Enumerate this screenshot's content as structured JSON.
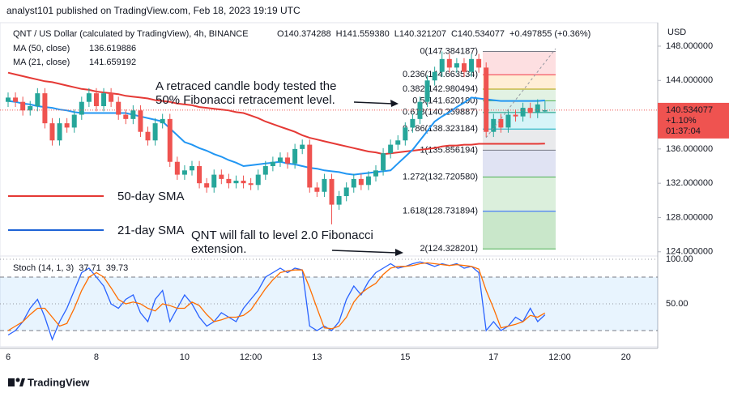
{
  "header": {
    "text": "analyst101 published on TradingView.com, Feb 18, 2023 19:19 UTC"
  },
  "footer": {
    "brand": "TradingView"
  },
  "chart_data": [
    {
      "type": "candlestick",
      "title": "QNT / US Dollar (calculated by TradingView), 4h, BINANCE",
      "ohlc_legend": [
        "O140.374288",
        "H141.559380",
        "L140.321207",
        "C140.534077",
        "+0.497855 (+0.36%)"
      ],
      "categories": [
        "6",
        null,
        null,
        null,
        null,
        null,
        null,
        null,
        null,
        null,
        null,
        null,
        "8",
        null,
        null,
        null,
        null,
        null,
        null,
        null,
        null,
        null,
        null,
        null,
        "10",
        null,
        null,
        null,
        null,
        null,
        null,
        null,
        null,
        "12:00",
        null,
        null,
        null,
        null,
        null,
        null,
        null,
        null,
        "13",
        null,
        null,
        null,
        null,
        null,
        null,
        null,
        null,
        null,
        null,
        null,
        "15",
        null,
        null,
        null,
        null,
        null,
        null,
        null,
        null,
        null,
        null,
        null,
        "17",
        null,
        null,
        null,
        null,
        null,
        null,
        null,
        null,
        "12:00",
        null,
        null,
        null,
        null,
        null,
        null,
        null,
        null,
        "20"
      ],
      "open": [
        141.5,
        142,
        141.5,
        140.5,
        141,
        142.5,
        139,
        137,
        139,
        138.5,
        140,
        141.5,
        142.5,
        141,
        142.5,
        141.5,
        140,
        139.5,
        140.5,
        138,
        137,
        139,
        139.5,
        134.5,
        133,
        133.5,
        134,
        132,
        131.5,
        133,
        132.5,
        132,
        132.3,
        132,
        131.8,
        133,
        134,
        134.5,
        135,
        134.3,
        136,
        136.5,
        131.5,
        131,
        132.5,
        129.5,
        130.5,
        131.5,
        132.5,
        131.8,
        132.8,
        133.5,
        135.5,
        136.5,
        137,
        138.5,
        139.5,
        141.5,
        144,
        145,
        146.5,
        145.5,
        146,
        145,
        146.5,
        145.5,
        138,
        139.5,
        138.5,
        140,
        139.8,
        140.8,
        140.2,
        140.374288,
        null,
        null,
        null,
        null,
        null,
        null,
        null,
        null,
        null,
        null,
        null
      ],
      "high": [
        142.6,
        142.6,
        142.1,
        141.6,
        143.1,
        143.1,
        139.6,
        139.6,
        139.6,
        140.6,
        142.1,
        143.1,
        143.1,
        143.1,
        143.1,
        142.1,
        140.6,
        141.1,
        141.1,
        138.6,
        139.6,
        140.1,
        140.1,
        135.1,
        134.1,
        134.6,
        134.6,
        132.6,
        133.6,
        133.6,
        133.1,
        132.9,
        132.9,
        132.6,
        133.6,
        134.6,
        135.1,
        135.6,
        135.6,
        136.6,
        137.1,
        137.1,
        132.1,
        133.1,
        133.1,
        131.1,
        132.1,
        133.1,
        133.1,
        133.4,
        134.1,
        136.1,
        137.1,
        137.6,
        139.1,
        140.1,
        142.1,
        144.6,
        145.6,
        147.384187,
        147.1,
        146.6,
        146.6,
        147.1,
        147.1,
        146.1,
        140.1,
        140.1,
        140.6,
        140.6,
        141.4,
        141.4,
        141.8,
        141.55938,
        null,
        null,
        null,
        null,
        null,
        null,
        null,
        null,
        null,
        null,
        null
      ],
      "low": [
        140.9,
        140.9,
        139.9,
        139.9,
        140.4,
        138.4,
        136.4,
        136.4,
        137.9,
        137.9,
        139.4,
        140.9,
        140.4,
        140.4,
        140.9,
        139.4,
        138.9,
        138.9,
        137.4,
        136.4,
        136.4,
        138.4,
        133.9,
        132.4,
        132.4,
        132.9,
        131.4,
        130.9,
        130.9,
        131.9,
        131.4,
        131.4,
        131.4,
        131.2,
        131.2,
        132.4,
        133.4,
        133.9,
        133.7,
        133.7,
        135.4,
        130.9,
        130.4,
        130.4,
        127.2,
        128.9,
        129.9,
        130.9,
        131.2,
        131.2,
        132.2,
        132.9,
        134.9,
        135.9,
        136.4,
        137.9,
        138.9,
        140.9,
        143.4,
        144.4,
        144.9,
        144.9,
        144.4,
        144.4,
        144.9,
        137.4,
        137.4,
        137.9,
        137.9,
        139.2,
        139.2,
        139.6,
        139.6,
        140.321207,
        null,
        null,
        null,
        null,
        null,
        null,
        null,
        null,
        null,
        null,
        null
      ],
      "close": [
        142,
        141.5,
        140.5,
        141,
        142.5,
        139,
        137,
        139,
        138.5,
        140,
        141.5,
        142.5,
        141,
        142.5,
        141.5,
        140,
        139.5,
        140.5,
        138,
        137,
        139,
        139.5,
        134.5,
        133,
        133.5,
        134,
        132,
        131.5,
        133,
        132.5,
        132,
        132.3,
        132,
        131.8,
        133,
        134,
        134.5,
        135,
        134.3,
        136,
        136.5,
        131.5,
        131,
        132.5,
        129.5,
        130.5,
        131.5,
        132.5,
        131.8,
        132.8,
        133.5,
        135.5,
        136.5,
        137,
        138.5,
        139.5,
        141.5,
        144,
        145,
        146.5,
        145.5,
        146,
        145,
        146.5,
        145.5,
        138,
        139.5,
        138.5,
        140,
        139.8,
        140.8,
        140.2,
        141.2,
        140.534077,
        null,
        null,
        null,
        null,
        null,
        null,
        null,
        null,
        null,
        null,
        null
      ],
      "up_color": "#26a69a",
      "down_color": "#ef5350",
      "series": [
        {
          "name": "MA (50, close)",
          "last_label": "136.619886",
          "color": "#e53935",
          "values": [
            144.9,
            144.7,
            144.5,
            144.3,
            144.1,
            143.9,
            143.8,
            143.6,
            143.4,
            143.2,
            143.0,
            142.9,
            142.7,
            142.6,
            142.5,
            142.4,
            142.2,
            142.1,
            142.0,
            141.9,
            141.7,
            141.6,
            141.5,
            141.3,
            141.2,
            141.1,
            140.9,
            140.8,
            140.7,
            140.6,
            140.5,
            140.3,
            140.2,
            139.9,
            139.6,
            139.2,
            138.9,
            138.6,
            138.3,
            138.0,
            137.6,
            137.3,
            137.1,
            136.9,
            136.7,
            136.5,
            136.3,
            136.1,
            135.9,
            135.7,
            135.6,
            135.4,
            135.5,
            135.6,
            135.7,
            135.8,
            135.9,
            136.0,
            136.1,
            136.3,
            136.4,
            136.4,
            136.5,
            136.5,
            136.6,
            136.6,
            136.6,
            136.6,
            136.6,
            136.6,
            136.6,
            136.6,
            136.6,
            136.619886,
            null,
            null,
            null,
            null,
            null,
            null,
            null,
            null,
            null,
            null,
            null
          ]
        },
        {
          "name": "MA (21, close)",
          "last_label": "141.659192",
          "color": "#2196f3",
          "values": [
            141.6,
            141.5,
            141.3,
            141.2,
            141.0,
            140.9,
            140.8,
            140.6,
            140.5,
            140.3,
            140.2,
            140.2,
            140.2,
            140.2,
            140.2,
            140.2,
            140.2,
            140.0,
            139.8,
            139.6,
            139.4,
            139.2,
            138.4,
            137.6,
            136.8,
            136.5,
            136.1,
            135.8,
            135.4,
            135.1,
            134.7,
            134.4,
            134.0,
            134.1,
            134.2,
            134.3,
            134.4,
            134.5,
            134.3,
            134.2,
            134.0,
            133.8,
            133.7,
            133.5,
            133.4,
            133.3,
            133.1,
            133.0,
            133.1,
            133.2,
            133.3,
            133.4,
            133.5,
            134.3,
            135.1,
            135.9,
            137.0,
            138.1,
            139.2,
            139.8,
            140.3,
            140.9,
            141.4,
            142.0,
            141.9,
            141.8,
            141.7,
            141.6,
            141.6,
            141.6,
            141.6,
            141.6,
            141.6,
            141.659192,
            null,
            null,
            null,
            null,
            null,
            null,
            null,
            null,
            null,
            null,
            null
          ]
        }
      ],
      "y_axis_label": "USD",
      "ylim": [
        123.6,
        150.55
      ],
      "yticks": [
        {
          "value": 124,
          "label": "124.000000"
        },
        {
          "value": 128,
          "label": "128.000000"
        },
        {
          "value": 132,
          "label": "132.000000"
        },
        {
          "value": 136,
          "label": "136.000000"
        },
        {
          "value": 140,
          "label": "140.000000"
        },
        {
          "value": 144,
          "label": "144.000000"
        },
        {
          "value": 148,
          "label": "148.000000"
        }
      ],
      "price_tag": {
        "value": 140.534077,
        "label": "140.534077",
        "change": "+1.10%",
        "countdown": "01:37:04",
        "color": "#ef5350"
      },
      "fibonacci": [
        {
          "label": "0(147.384187)",
          "value": 147.384187,
          "color": "#787b86",
          "fill": "rgba(242,54,69,0.16)"
        },
        {
          "label": "0.236(144.663534)",
          "value": 144.663534,
          "color": "#f23645",
          "fill": "rgba(255,152,0,0.16)"
        },
        {
          "label": "0.382(142.980494)",
          "value": 142.980494,
          "color": "#b0a000",
          "fill": "rgba(76,175,80,0.16)"
        },
        {
          "label": "0.5(141.620190)",
          "value": 141.62019,
          "color": "#4caf50",
          "fill": "rgba(8,153,129,0.16)"
        },
        {
          "label": "0.618(140.259887)",
          "value": 140.259887,
          "color": "#089981",
          "fill": "rgba(0,188,212,0.16)"
        },
        {
          "label": "0.786(138.323184)",
          "value": 138.323184,
          "color": "#00acc1",
          "fill": "rgba(120,123,134,0.16)"
        },
        {
          "label": "1(135.856194)",
          "value": 135.856194,
          "color": "#787b86",
          "fill": "rgba(63,81,181,0.16)"
        },
        {
          "label": "1.272(132.720580)",
          "value": 132.72058,
          "color": "#4caf50",
          "fill": "rgba(76,175,80,0.2)"
        },
        {
          "label": "1.618(128.731894)",
          "value": 128.731894,
          "color": "#2962ff",
          "fill": "rgba(76,175,80,0.3)"
        },
        {
          "label": "2(124.328201)",
          "value": 124.328201,
          "color": "#4caf50",
          "fill": "rgba(76,175,80,0.3)"
        }
      ],
      "annotations": [
        {
          "lines": [
            "A retraced candle body tested the",
            "50% Fibonacci retracement level."
          ]
        },
        {
          "lines": [
            "QNT will fall to level 2.0 Fibonacci",
            "extension."
          ]
        }
      ],
      "sma_labels": [
        {
          "text": "50-day SMA",
          "color": "#e53935"
        },
        {
          "text": "21-day SMA",
          "color": "#1e63d6"
        }
      ]
    },
    {
      "type": "line",
      "title": "Stoch (14, 1, 3)",
      "series": [
        {
          "last_label": "37.71",
          "color": "#2962ff",
          "values": [
            15,
            20,
            30,
            45,
            55,
            35,
            10,
            30,
            45,
            65,
            85,
            90,
            80,
            70,
            50,
            45,
            55,
            60,
            40,
            30,
            55,
            65,
            30,
            45,
            60,
            50,
            35,
            25,
            30,
            40,
            35,
            30,
            45,
            55,
            65,
            80,
            85,
            90,
            85,
            90,
            88,
            25,
            20,
            25,
            20,
            30,
            55,
            70,
            60,
            75,
            85,
            90,
            95,
            90,
            92,
            95,
            97,
            95,
            92,
            95,
            93,
            95,
            90,
            92,
            85,
            20,
            30,
            20,
            25,
            35,
            30,
            45,
            30,
            37.71,
            null,
            null,
            null,
            null,
            null,
            null,
            null,
            null,
            null,
            null,
            null
          ]
        },
        {
          "last_label": "39.73",
          "color": "#ff6d00",
          "values": [
            20,
            25,
            30,
            38,
            45,
            45,
            35,
            25,
            28,
            45,
            65,
            80,
            85,
            80,
            68,
            55,
            50,
            52,
            50,
            45,
            42,
            50,
            48,
            45,
            45,
            52,
            48,
            38,
            30,
            32,
            35,
            35,
            37,
            43,
            55,
            67,
            77,
            85,
            87,
            88,
            88,
            68,
            45,
            23,
            22,
            25,
            35,
            52,
            62,
            68,
            73,
            83,
            90,
            92,
            92,
            93,
            95,
            96,
            95,
            94,
            93,
            94,
            93,
            92,
            89,
            65,
            45,
            23,
            25,
            27,
            30,
            37,
            35,
            39.73,
            null,
            null,
            null,
            null,
            null,
            null,
            null,
            null,
            null,
            null,
            null
          ]
        }
      ],
      "ylim": [
        0,
        100
      ],
      "yticks": [
        {
          "value": 50,
          "label": "50.00"
        },
        {
          "value": 100,
          "label": "100.00"
        }
      ],
      "band": [
        20,
        80
      ]
    }
  ]
}
